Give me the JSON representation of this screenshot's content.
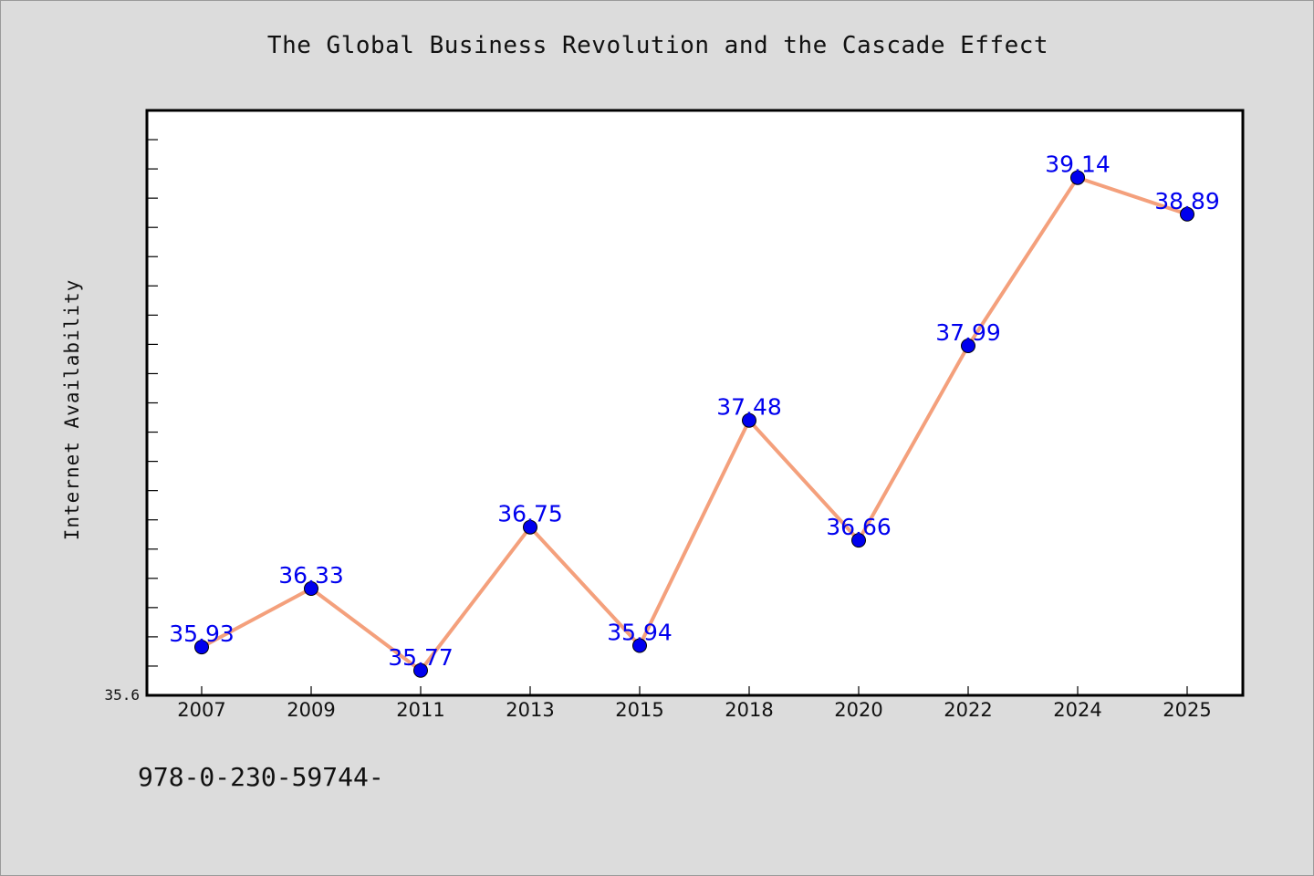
{
  "title": "The Global Business Revolution and the Cascade Effect",
  "footer_text": "978-0-230-59744-",
  "colors": {
    "background": "#dcdcdc",
    "plot_background": "#ffffff",
    "line": "#f4a07c",
    "marker": "#0000ee",
    "data_label": "#0000ee"
  },
  "chart_data": {
    "type": "line",
    "title": "The Global Business Revolution and the Cascade Effect",
    "xlabel": "",
    "ylabel": "Internet Availability",
    "categories": [
      "2007",
      "2009",
      "2011",
      "2013",
      "2015",
      "2018",
      "2020",
      "2022",
      "2024",
      "2025"
    ],
    "series": [
      {
        "values": [
          35.93,
          36.33,
          35.77,
          36.75,
          35.94,
          37.48,
          36.66,
          37.99,
          39.14,
          38.89
        ],
        "data_labels": [
          "35.93",
          "36.33",
          "35.77",
          "36.75",
          "35.94",
          "37.48",
          "36.66",
          "37.99",
          "39.14",
          "38.89"
        ]
      }
    ],
    "ylim": [
      35.6,
      39.6
    ],
    "y_tick_labels": [
      "35.6"
    ],
    "grid": false,
    "legend": "none",
    "markers": "filled circles"
  }
}
